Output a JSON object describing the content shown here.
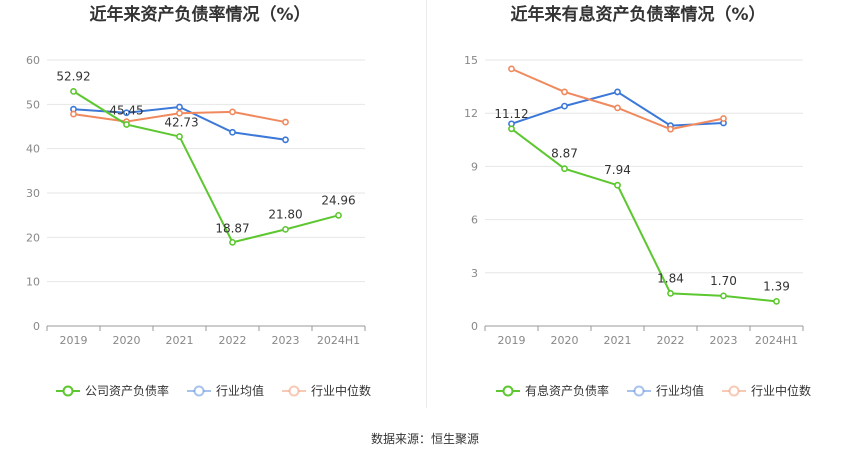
{
  "source": "数据来源：恒生聚源",
  "legend_names": [
    "",
    ""
  ],
  "chart_data": [
    {
      "type": "line",
      "title": "近年来资产负债率情况（%）",
      "categories": [
        "2019",
        "2020",
        "2021",
        "2022",
        "2023",
        "2024H1"
      ],
      "ylim": [
        0,
        60
      ],
      "yticks": [
        0,
        10,
        20,
        30,
        40,
        50,
        60
      ],
      "grid": true,
      "legend": "bottom",
      "series": [
        {
          "name": "公司资产负债率",
          "color": "#5cc72f",
          "labeled": true,
          "values": [
            52.92,
            45.45,
            42.73,
            18.87,
            21.8,
            24.96
          ],
          "labels": [
            "52.92",
            "45.45",
            "42.73",
            "18.87",
            "21.80",
            "24.96"
          ]
        },
        {
          "name": "行业均值",
          "color": "#3b78d8",
          "labeled": false,
          "values": [
            48.9,
            48.1,
            49.4,
            43.7,
            42.0,
            null
          ]
        },
        {
          "name": "行业中位数",
          "color": "#f0895d",
          "labeled": false,
          "values": [
            47.8,
            46.1,
            48.0,
            48.3,
            46.0,
            null
          ]
        }
      ]
    },
    {
      "type": "line",
      "title": "近年来有息资产负债率情况（%）",
      "categories": [
        "2019",
        "2020",
        "2021",
        "2022",
        "2023",
        "2024H1"
      ],
      "ylim": [
        0,
        15
      ],
      "yticks": [
        0,
        3,
        6,
        9,
        12,
        15
      ],
      "grid": true,
      "legend": "bottom",
      "series": [
        {
          "name": "有息资产负债率",
          "color": "#5cc72f",
          "labeled": true,
          "values": [
            11.12,
            8.87,
            7.94,
            1.84,
            1.7,
            1.39
          ],
          "labels": [
            "11.12",
            "8.87",
            "7.94",
            "1.84",
            "1.70",
            "1.39"
          ]
        },
        {
          "name": "行业均值",
          "color": "#3b78d8",
          "labeled": false,
          "values": [
            11.4,
            12.4,
            13.2,
            11.3,
            11.45,
            null
          ]
        },
        {
          "name": "行业中位数",
          "color": "#f0895d",
          "labeled": false,
          "values": [
            14.5,
            13.2,
            12.3,
            11.1,
            11.7,
            null
          ]
        }
      ]
    }
  ]
}
